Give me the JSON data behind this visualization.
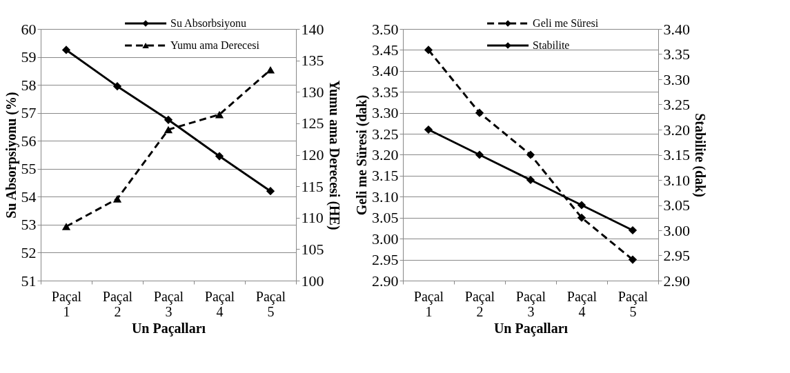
{
  "chart_data": [
    {
      "type": "line",
      "categories": [
        "Paçal 1",
        "Paçal 2",
        "Paçal 3",
        "Paçal 4",
        "Paçal 5"
      ],
      "xlabel": "Un Paçalları",
      "ylabel": "Su Absorpsiyonu (%)",
      "y2label": "Yumu ama Derecesi (HE)",
      "series": [
        {
          "name": "Su Absorbsiyonu",
          "color": "#000000",
          "values": [
            59.25,
            57.95,
            56.75,
            55.45,
            54.2
          ],
          "marker": "diamond",
          "line_style": "solid"
        },
        {
          "name": "Yumu ama Derecesi",
          "color": "#000000",
          "values": [
            108.6,
            113.0,
            124.0,
            126.4,
            133.5
          ],
          "axis": "y2",
          "marker": "triangle",
          "line_style": "dashed"
        }
      ],
      "ylim": [
        51,
        60
      ],
      "yticks": [
        51,
        52,
        53,
        54,
        55,
        56,
        57,
        58,
        59,
        60
      ],
      "y2lim": [
        100,
        140
      ],
      "y2ticks": [
        100,
        105,
        110,
        115,
        120,
        125,
        130,
        135,
        140
      ],
      "grid": "y",
      "legend": "top"
    },
    {
      "type": "line",
      "categories": [
        "Paçal 1",
        "Paçal 2",
        "Paçal 3",
        "Paçal 4",
        "Paçal 5"
      ],
      "xlabel": "Un Paçalları",
      "ylabel": "Geli me Süresi  (dak)",
      "y2label": "Stabilite (dak)",
      "series": [
        {
          "name": "Geli me Süresi",
          "color": "#000000",
          "values": [
            3.45,
            3.3,
            3.2,
            3.05,
            2.95
          ],
          "marker": "diamond",
          "line_style": "dashed"
        },
        {
          "name": "Stabilite",
          "color": "#000000",
          "values": [
            3.2,
            3.15,
            3.1,
            3.05,
            3.0
          ],
          "axis": "y2",
          "marker": "diamond",
          "line_style": "solid"
        }
      ],
      "ylim": [
        2.9,
        3.5
      ],
      "yticks": [
        {
          "value": 2.9,
          "label": "2.90"
        },
        {
          "value": 2.95,
          "label": "2.95"
        },
        {
          "value": 3.0,
          "label": "3.00"
        },
        {
          "value": 3.05,
          "label": "3.05"
        },
        {
          "value": 3.1,
          "label": "3.10"
        },
        {
          "value": 3.15,
          "label": "3.15"
        },
        {
          "value": 3.2,
          "label": "3.20"
        },
        {
          "value": 3.25,
          "label": "3.25"
        },
        {
          "value": 3.3,
          "label": "3.30"
        },
        {
          "value": 3.35,
          "label": "3.35"
        },
        {
          "value": 3.4,
          "label": "3.40"
        },
        {
          "value": 3.45,
          "label": "3.45"
        },
        {
          "value": 3.5,
          "label": "3.50"
        }
      ],
      "y2lim": [
        2.9,
        3.4
      ],
      "y2ticks": [
        {
          "value": 2.9,
          "label": "2.90"
        },
        {
          "value": 2.95,
          "label": "2.95"
        },
        {
          "value": 3.0,
          "label": "3.00"
        },
        {
          "value": 3.05,
          "label": "3.05"
        },
        {
          "value": 3.1,
          "label": "3.10"
        },
        {
          "value": 3.15,
          "label": "3.15"
        },
        {
          "value": 3.2,
          "label": "3.20"
        },
        {
          "value": 3.25,
          "label": "3.25"
        },
        {
          "value": 3.3,
          "label": "3.30"
        },
        {
          "value": 3.35,
          "label": "3.35"
        },
        {
          "value": 3.4,
          "label": "3.40"
        }
      ],
      "grid": "y",
      "legend": "top"
    }
  ]
}
